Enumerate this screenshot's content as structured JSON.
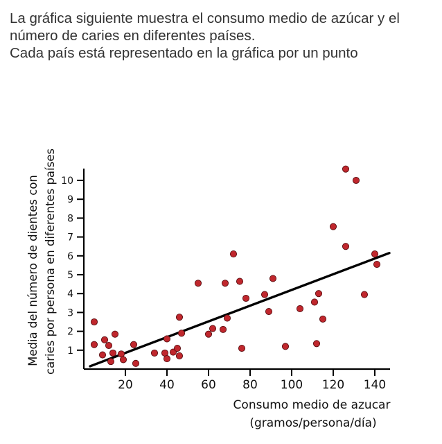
{
  "intro": {
    "line1": "La gráfica siguiente muestra el consumo medio de azúcar y el número de caries en diferentes países.",
    "line2": "Cada país está representado en la gráfica por un punto"
  },
  "colors": {
    "point_fill": "#c0272d",
    "point_stroke": "#5a0f12",
    "axis": "#000000",
    "trend_line": "#000000"
  },
  "chart_data": {
    "type": "scatter",
    "title": "",
    "xlabel_line1": "Consumo medio de azucar",
    "xlabel_line2": "(gramos/persona/día)",
    "ylabel_line1": "Media del número de dientes con",
    "ylabel_line2": "caries por persona en diferentes países",
    "xlim": [
      0,
      150
    ],
    "ylim": [
      0,
      10.9
    ],
    "x_ticks": [
      20,
      40,
      60,
      80,
      100,
      120,
      140
    ],
    "y_ticks": [
      1,
      2,
      3,
      4,
      5,
      6,
      7,
      8,
      9,
      10
    ],
    "grid": false,
    "legend": "none",
    "series": [
      {
        "points": [
          [
            5,
            2.5
          ],
          [
            5,
            1.3
          ],
          [
            9,
            0.75
          ],
          [
            10,
            1.55
          ],
          [
            12,
            1.25
          ],
          [
            13,
            0.4
          ],
          [
            14,
            0.85
          ],
          [
            15,
            1.85
          ],
          [
            18,
            0.8
          ],
          [
            19,
            0.5
          ],
          [
            24,
            1.3
          ],
          [
            25,
            0.3
          ],
          [
            34,
            0.85
          ],
          [
            39,
            0.85
          ],
          [
            40,
            1.6
          ],
          [
            40,
            0.55
          ],
          [
            43,
            0.9
          ],
          [
            45,
            1.1
          ],
          [
            46,
            0.7
          ],
          [
            46,
            2.75
          ],
          [
            47,
            1.9
          ],
          [
            55,
            4.55
          ],
          [
            60,
            1.85
          ],
          [
            62,
            2.15
          ],
          [
            67,
            2.1
          ],
          [
            68,
            4.55
          ],
          [
            69,
            2.7
          ],
          [
            72,
            6.1
          ],
          [
            75,
            4.65
          ],
          [
            76,
            1.1
          ],
          [
            78,
            3.75
          ],
          [
            87,
            3.95
          ],
          [
            89,
            3.05
          ],
          [
            91,
            4.8
          ],
          [
            97,
            1.2
          ],
          [
            104,
            3.2
          ],
          [
            111,
            3.55
          ],
          [
            112,
            1.35
          ],
          [
            113,
            4.0
          ],
          [
            115,
            2.65
          ],
          [
            120,
            7.55
          ],
          [
            126,
            10.6
          ],
          [
            126,
            6.5
          ],
          [
            131,
            10.0
          ],
          [
            135,
            3.95
          ],
          [
            140,
            6.1
          ],
          [
            141,
            5.55
          ]
        ]
      }
    ],
    "trend_line": {
      "x0": 3,
      "y0": 0.15,
      "x1": 147,
      "y1": 6.15
    }
  }
}
